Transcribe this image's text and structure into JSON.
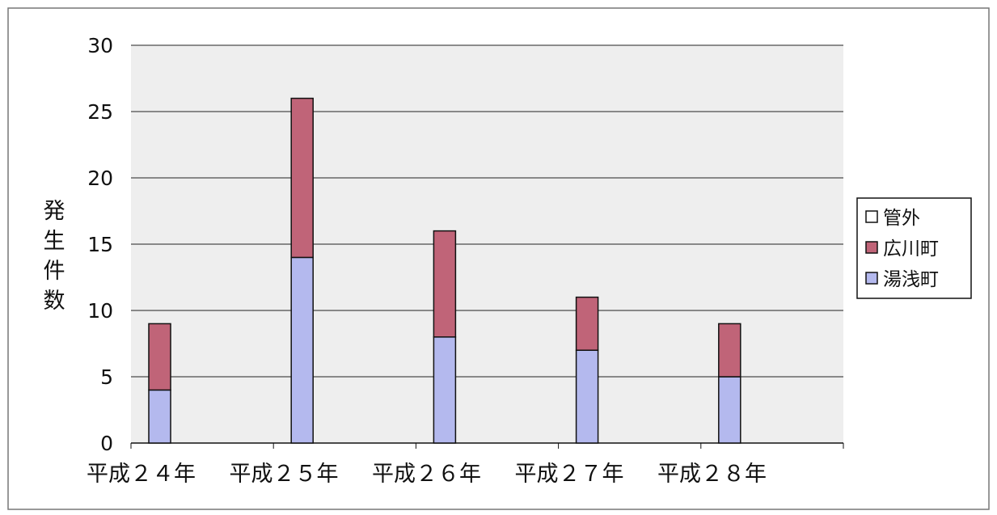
{
  "chart_data": {
    "type": "bar",
    "stacked": true,
    "categories": [
      "平成２４年",
      "平成２５年",
      "平成２６年",
      "平成２７年",
      "平成２８年"
    ],
    "series": [
      {
        "name": "湯浅町",
        "values": [
          4,
          14,
          8,
          7,
          5
        ],
        "color": "#b4b9ee"
      },
      {
        "name": "広川町",
        "values": [
          5,
          12,
          8,
          4,
          4
        ],
        "color": "#c06478"
      },
      {
        "name": "管外",
        "values": [
          0,
          0,
          0,
          0,
          0
        ],
        "color": "#ffffff"
      }
    ],
    "ylabel": "発生件数",
    "ylim": [
      0,
      30
    ],
    "yticks": [
      0,
      5,
      10,
      15,
      20,
      25,
      30
    ],
    "grid": true,
    "legend_position": "right",
    "legend_order": [
      "管外",
      "広川町",
      "湯浅町"
    ],
    "plot_background": "#eeeeee",
    "gridline_color": "#222222"
  }
}
